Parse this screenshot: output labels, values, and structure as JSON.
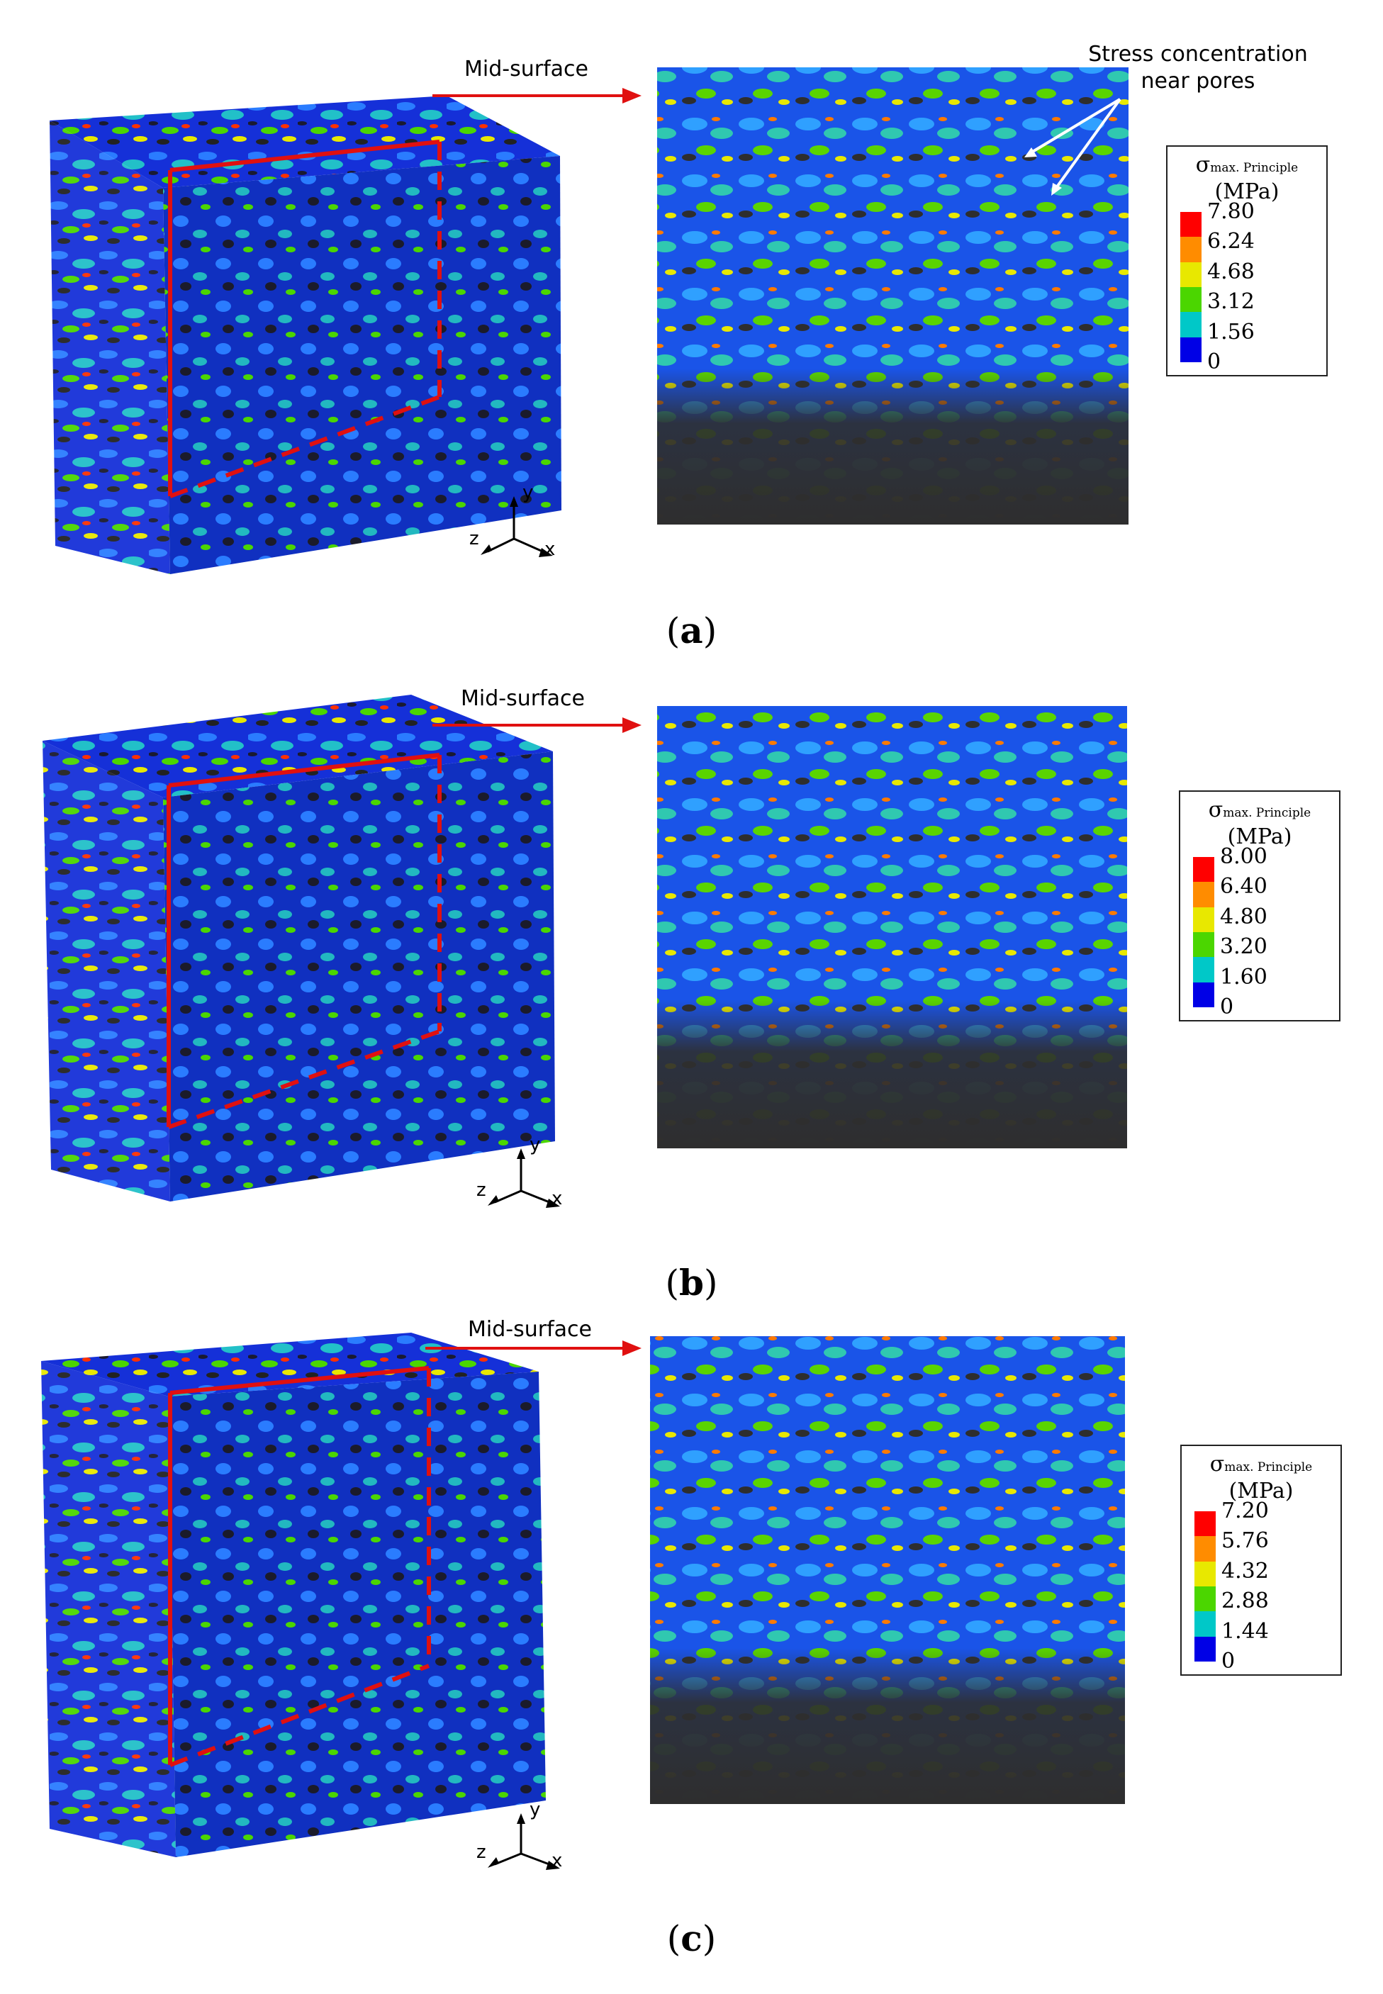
{
  "panels": [
    {
      "id": "a",
      "caption_letter": "a",
      "mid_surface_label": "Mid-surface",
      "stress_label_line1": "Stress concentration",
      "stress_label_line2": "near pores",
      "legend": {
        "symbol": "σ",
        "symbol_sub": "max. Principle",
        "unit": "(MPa)",
        "ticks": [
          "7.80",
          "6.24",
          "4.68",
          "3.12",
          "1.56",
          "0"
        ]
      },
      "axes": {
        "y": "y",
        "z": "z",
        "x": "x"
      }
    },
    {
      "id": "b",
      "caption_letter": "b",
      "mid_surface_label": "Mid-surface",
      "legend": {
        "symbol": "σ",
        "symbol_sub": "max. Principle",
        "unit": "(MPa)",
        "ticks": [
          "8.00",
          "6.40",
          "4.80",
          "3.20",
          "1.60",
          "0"
        ]
      },
      "axes": {
        "y": "y",
        "z": "z",
        "x": "x"
      }
    },
    {
      "id": "c",
      "caption_letter": "c",
      "mid_surface_label": "Mid-surface",
      "legend": {
        "symbol": "σ",
        "symbol_sub": "max. Principle",
        "unit": "(MPa)",
        "ticks": [
          "7.20",
          "5.76",
          "4.32",
          "2.88",
          "1.44",
          "0"
        ]
      },
      "axes": {
        "y": "y",
        "z": "z",
        "x": "x"
      }
    }
  ],
  "colors": {
    "colormap": [
      "#ff0000",
      "#ff8c00",
      "#e8e800",
      "#4bd600",
      "#00c8c8",
      "#0a8cff",
      "#0000e6"
    ],
    "pore": "#2e2e2e",
    "annotation": "#e01010"
  }
}
